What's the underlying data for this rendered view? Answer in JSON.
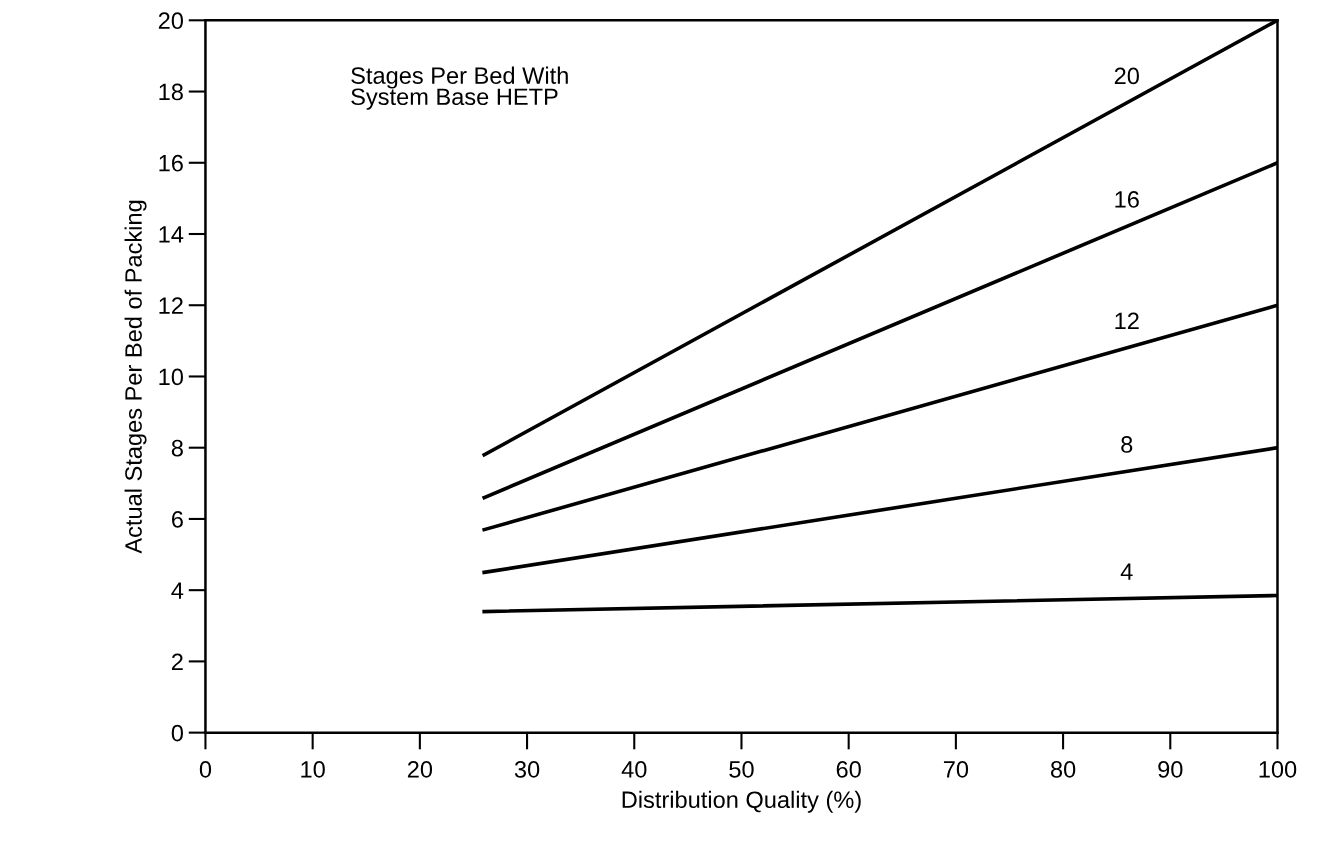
{
  "chart_data": {
    "type": "line",
    "xlabel": "Distribution Quality (%)",
    "ylabel": "Actual Stages Per Bed of Packing",
    "annotations": [
      "Stages Per Bed With\nSystem Base HETP"
    ],
    "x": [
      26,
      100
    ],
    "series": [
      {
        "name": "20",
        "color": "#000000",
        "values": [
          7.8,
          20
        ]
      },
      {
        "name": "16",
        "color": "#000000",
        "values": [
          6.6,
          16
        ]
      },
      {
        "name": "12",
        "color": "#000000",
        "values": [
          5.7,
          12
        ]
      },
      {
        "name": "8",
        "color": "#000000",
        "values": [
          4.5,
          8
        ]
      },
      {
        "name": "4",
        "color": "#000000",
        "values": [
          3.4,
          3.85
        ]
      }
    ],
    "xlim": [
      0,
      100
    ],
    "xticks": [
      0,
      10,
      20,
      30,
      40,
      50,
      60,
      70,
      80,
      90,
      100
    ],
    "ylim": [
      0,
      20
    ],
    "yticks": [
      0,
      2,
      4,
      6,
      8,
      10,
      12,
      14,
      16,
      18,
      20
    ],
    "grid": false,
    "legend": false,
    "marker": "none",
    "line_style": "solid"
  }
}
